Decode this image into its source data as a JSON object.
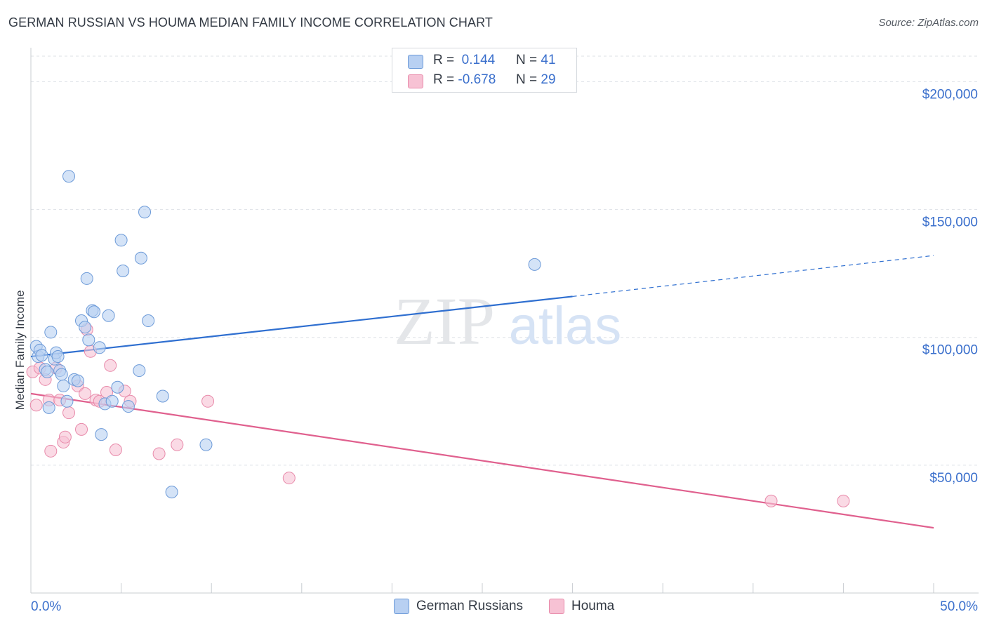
{
  "title": "GERMAN RUSSIAN VS HOUMA MEDIAN FAMILY INCOME CORRELATION CHART",
  "source": "Source: ZipAtlas.com",
  "watermark": {
    "zip": "ZIP",
    "atlas": "atlas"
  },
  "legend": {
    "rows": [
      {
        "r_label": "R =",
        "r_value": "0.144",
        "n_label": "N =",
        "n_value": "41"
      },
      {
        "r_label": "R =",
        "r_value": "-0.678",
        "n_label": "N =",
        "n_value": "29"
      }
    ]
  },
  "colors": {
    "german_fill": "#b8d0f2",
    "german_stroke": "#6c9ad8",
    "german_line": "#2f6fd0",
    "houma_fill": "#f7c2d4",
    "houma_stroke": "#e88aaa",
    "houma_line": "#e0608e",
    "axis_label": "#3a6fcc",
    "grid": "#dde1e6"
  },
  "chart_data": {
    "type": "scatter",
    "ylabel": "Median Family Income",
    "xlim": [
      0,
      50
    ],
    "ylim": [
      0,
      210000
    ],
    "x_tick_labels": {
      "min": "0.0%",
      "max": "50.0%"
    },
    "y_ticks": [
      {
        "value": 50000,
        "label": "$50,000"
      },
      {
        "value": 100000,
        "label": "$100,000"
      },
      {
        "value": 150000,
        "label": "$150,000"
      },
      {
        "value": 200000,
        "label": "$200,000"
      }
    ],
    "grid": true,
    "legend_position": "bottom",
    "series": [
      {
        "name": "German Russians",
        "r": 0.144,
        "n": 41,
        "trend": {
          "x_start": 0,
          "y_start": 92500,
          "x_solid_end": 30,
          "y_solid_end": 116000,
          "x_end": 50,
          "y_end": 132000
        },
        "points": [
          [
            0.3,
            96500
          ],
          [
            0.4,
            92500
          ],
          [
            0.5,
            95000
          ],
          [
            0.6,
            93000
          ],
          [
            0.8,
            87500
          ],
          [
            0.9,
            86500
          ],
          [
            1.0,
            72500
          ],
          [
            1.1,
            102000
          ],
          [
            1.3,
            91500
          ],
          [
            1.4,
            94000
          ],
          [
            1.5,
            92500
          ],
          [
            1.6,
            87000
          ],
          [
            1.7,
            85500
          ],
          [
            1.8,
            81000
          ],
          [
            2.0,
            75000
          ],
          [
            2.1,
            163000
          ],
          [
            2.4,
            83500
          ],
          [
            2.6,
            83000
          ],
          [
            2.8,
            106500
          ],
          [
            3.0,
            104000
          ],
          [
            3.1,
            123000
          ],
          [
            3.2,
            99000
          ],
          [
            3.4,
            110500
          ],
          [
            3.5,
            110000
          ],
          [
            3.8,
            96000
          ],
          [
            3.9,
            62000
          ],
          [
            4.1,
            74000
          ],
          [
            4.3,
            108500
          ],
          [
            4.5,
            75000
          ],
          [
            4.8,
            80500
          ],
          [
            5.0,
            138000
          ],
          [
            5.1,
            126000
          ],
          [
            5.4,
            73000
          ],
          [
            6.0,
            87000
          ],
          [
            6.1,
            131000
          ],
          [
            6.3,
            149000
          ],
          [
            6.5,
            106500
          ],
          [
            7.3,
            77000
          ],
          [
            7.8,
            39500
          ],
          [
            9.7,
            58000
          ],
          [
            27.9,
            128500
          ]
        ]
      },
      {
        "name": "Houma",
        "r": -0.678,
        "n": 29,
        "trend": {
          "x_start": 0,
          "y_start": 78000,
          "x_end": 50,
          "y_end": 25500
        },
        "points": [
          [
            0.1,
            86500
          ],
          [
            0.3,
            73500
          ],
          [
            0.8,
            83500
          ],
          [
            1.0,
            75500
          ],
          [
            1.1,
            55500
          ],
          [
            1.4,
            88000
          ],
          [
            1.6,
            75500
          ],
          [
            1.8,
            59000
          ],
          [
            1.9,
            61000
          ],
          [
            2.1,
            70500
          ],
          [
            2.6,
            81000
          ],
          [
            2.8,
            64000
          ],
          [
            3.0,
            78000
          ],
          [
            3.1,
            103000
          ],
          [
            3.3,
            94500
          ],
          [
            3.6,
            75500
          ],
          [
            3.8,
            75000
          ],
          [
            4.2,
            78500
          ],
          [
            4.4,
            89000
          ],
          [
            4.7,
            56000
          ],
          [
            5.2,
            79000
          ],
          [
            5.5,
            75000
          ],
          [
            7.1,
            54500
          ],
          [
            8.1,
            58000
          ],
          [
            9.8,
            75000
          ],
          [
            14.3,
            45000
          ],
          [
            41.0,
            36000
          ],
          [
            45.0,
            36000
          ],
          [
            0.5,
            88000
          ]
        ]
      }
    ]
  }
}
